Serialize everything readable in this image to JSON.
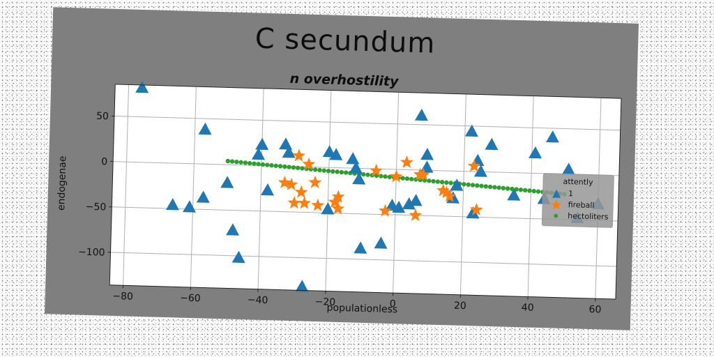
{
  "chart_data": {
    "type": "scatter",
    "title": "C  secundum",
    "subtitle": "n overhostility",
    "xlabel": "populationless",
    "ylabel": "endogenae",
    "xlim": [
      -84,
      66
    ],
    "ylim": [
      -136,
      85
    ],
    "xticks": [
      -80,
      -60,
      -40,
      -20,
      0,
      20,
      40,
      60
    ],
    "yticks": [
      50,
      0,
      -50,
      -100
    ],
    "grid": true,
    "legend": {
      "title": "attently",
      "placement": "right",
      "entries": [
        "1",
        "fireball",
        "hectoliters"
      ]
    },
    "series": [
      {
        "name": "1",
        "marker": "triangle",
        "color": "#1f77b4",
        "points": [
          [
            -76,
            82
          ],
          [
            -66,
            -46
          ],
          [
            -61,
            -48
          ],
          [
            -57,
            38
          ],
          [
            -57,
            -37
          ],
          [
            -50,
            -20
          ],
          [
            -48,
            -72
          ],
          [
            -46,
            -102
          ],
          [
            -41,
            12
          ],
          [
            -40,
            23
          ],
          [
            -38,
            -27
          ],
          [
            -33,
            24
          ],
          [
            -32,
            15
          ],
          [
            -27,
            -132
          ],
          [
            -20,
            -46
          ],
          [
            -20,
            17
          ],
          [
            -18,
            14
          ],
          [
            -13,
            10
          ],
          [
            -12,
            0
          ],
          [
            -11,
            -12
          ],
          [
            -10,
            -88
          ],
          [
            -4,
            -82
          ],
          [
            -1,
            -40
          ],
          [
            1,
            -42
          ],
          [
            4,
            -38
          ],
          [
            6,
            -34
          ],
          [
            7,
            60
          ],
          [
            9,
            17
          ],
          [
            9,
            3
          ],
          [
            17,
            -30
          ],
          [
            18,
            -16
          ],
          [
            22,
            44
          ],
          [
            23,
            -46
          ],
          [
            24,
            12
          ],
          [
            25,
            0
          ],
          [
            28,
            30
          ],
          [
            35,
            -25
          ],
          [
            41,
            22
          ],
          [
            44,
            -28
          ],
          [
            46,
            40
          ],
          [
            51,
            5
          ],
          [
            54,
            -48
          ],
          [
            60,
            -32
          ]
        ]
      },
      {
        "name": "fireball",
        "marker": "star",
        "color": "#ff7f0e",
        "points": [
          [
            -33,
            -18
          ],
          [
            -31,
            -20
          ],
          [
            -30,
            -40
          ],
          [
            -29,
            12
          ],
          [
            -28,
            -28
          ],
          [
            -27,
            -40
          ],
          [
            -26,
            3
          ],
          [
            -24,
            -17
          ],
          [
            -23,
            -42
          ],
          [
            -18,
            -38
          ],
          [
            -17,
            -45
          ],
          [
            -17,
            -32
          ],
          [
            -6,
            -2
          ],
          [
            -3,
            -46
          ],
          [
            0,
            -8
          ],
          [
            3,
            8
          ],
          [
            6,
            -50
          ],
          [
            7,
            -5
          ],
          [
            8,
            -5
          ],
          [
            14,
            -22
          ],
          [
            15,
            -24
          ],
          [
            16,
            -28
          ],
          [
            23,
            6
          ],
          [
            24,
            -42
          ]
        ]
      },
      {
        "name": "hectoliters",
        "marker": "dot",
        "color": "#2ca02c",
        "x_range": [
          -50,
          50
        ],
        "y_range": [
          4,
          -22
        ],
        "count": 78
      }
    ]
  },
  "colors": {
    "figure_bg": "#7f7f7f",
    "axes_bg": "#ffffff",
    "grid": "#b0b0b0"
  }
}
